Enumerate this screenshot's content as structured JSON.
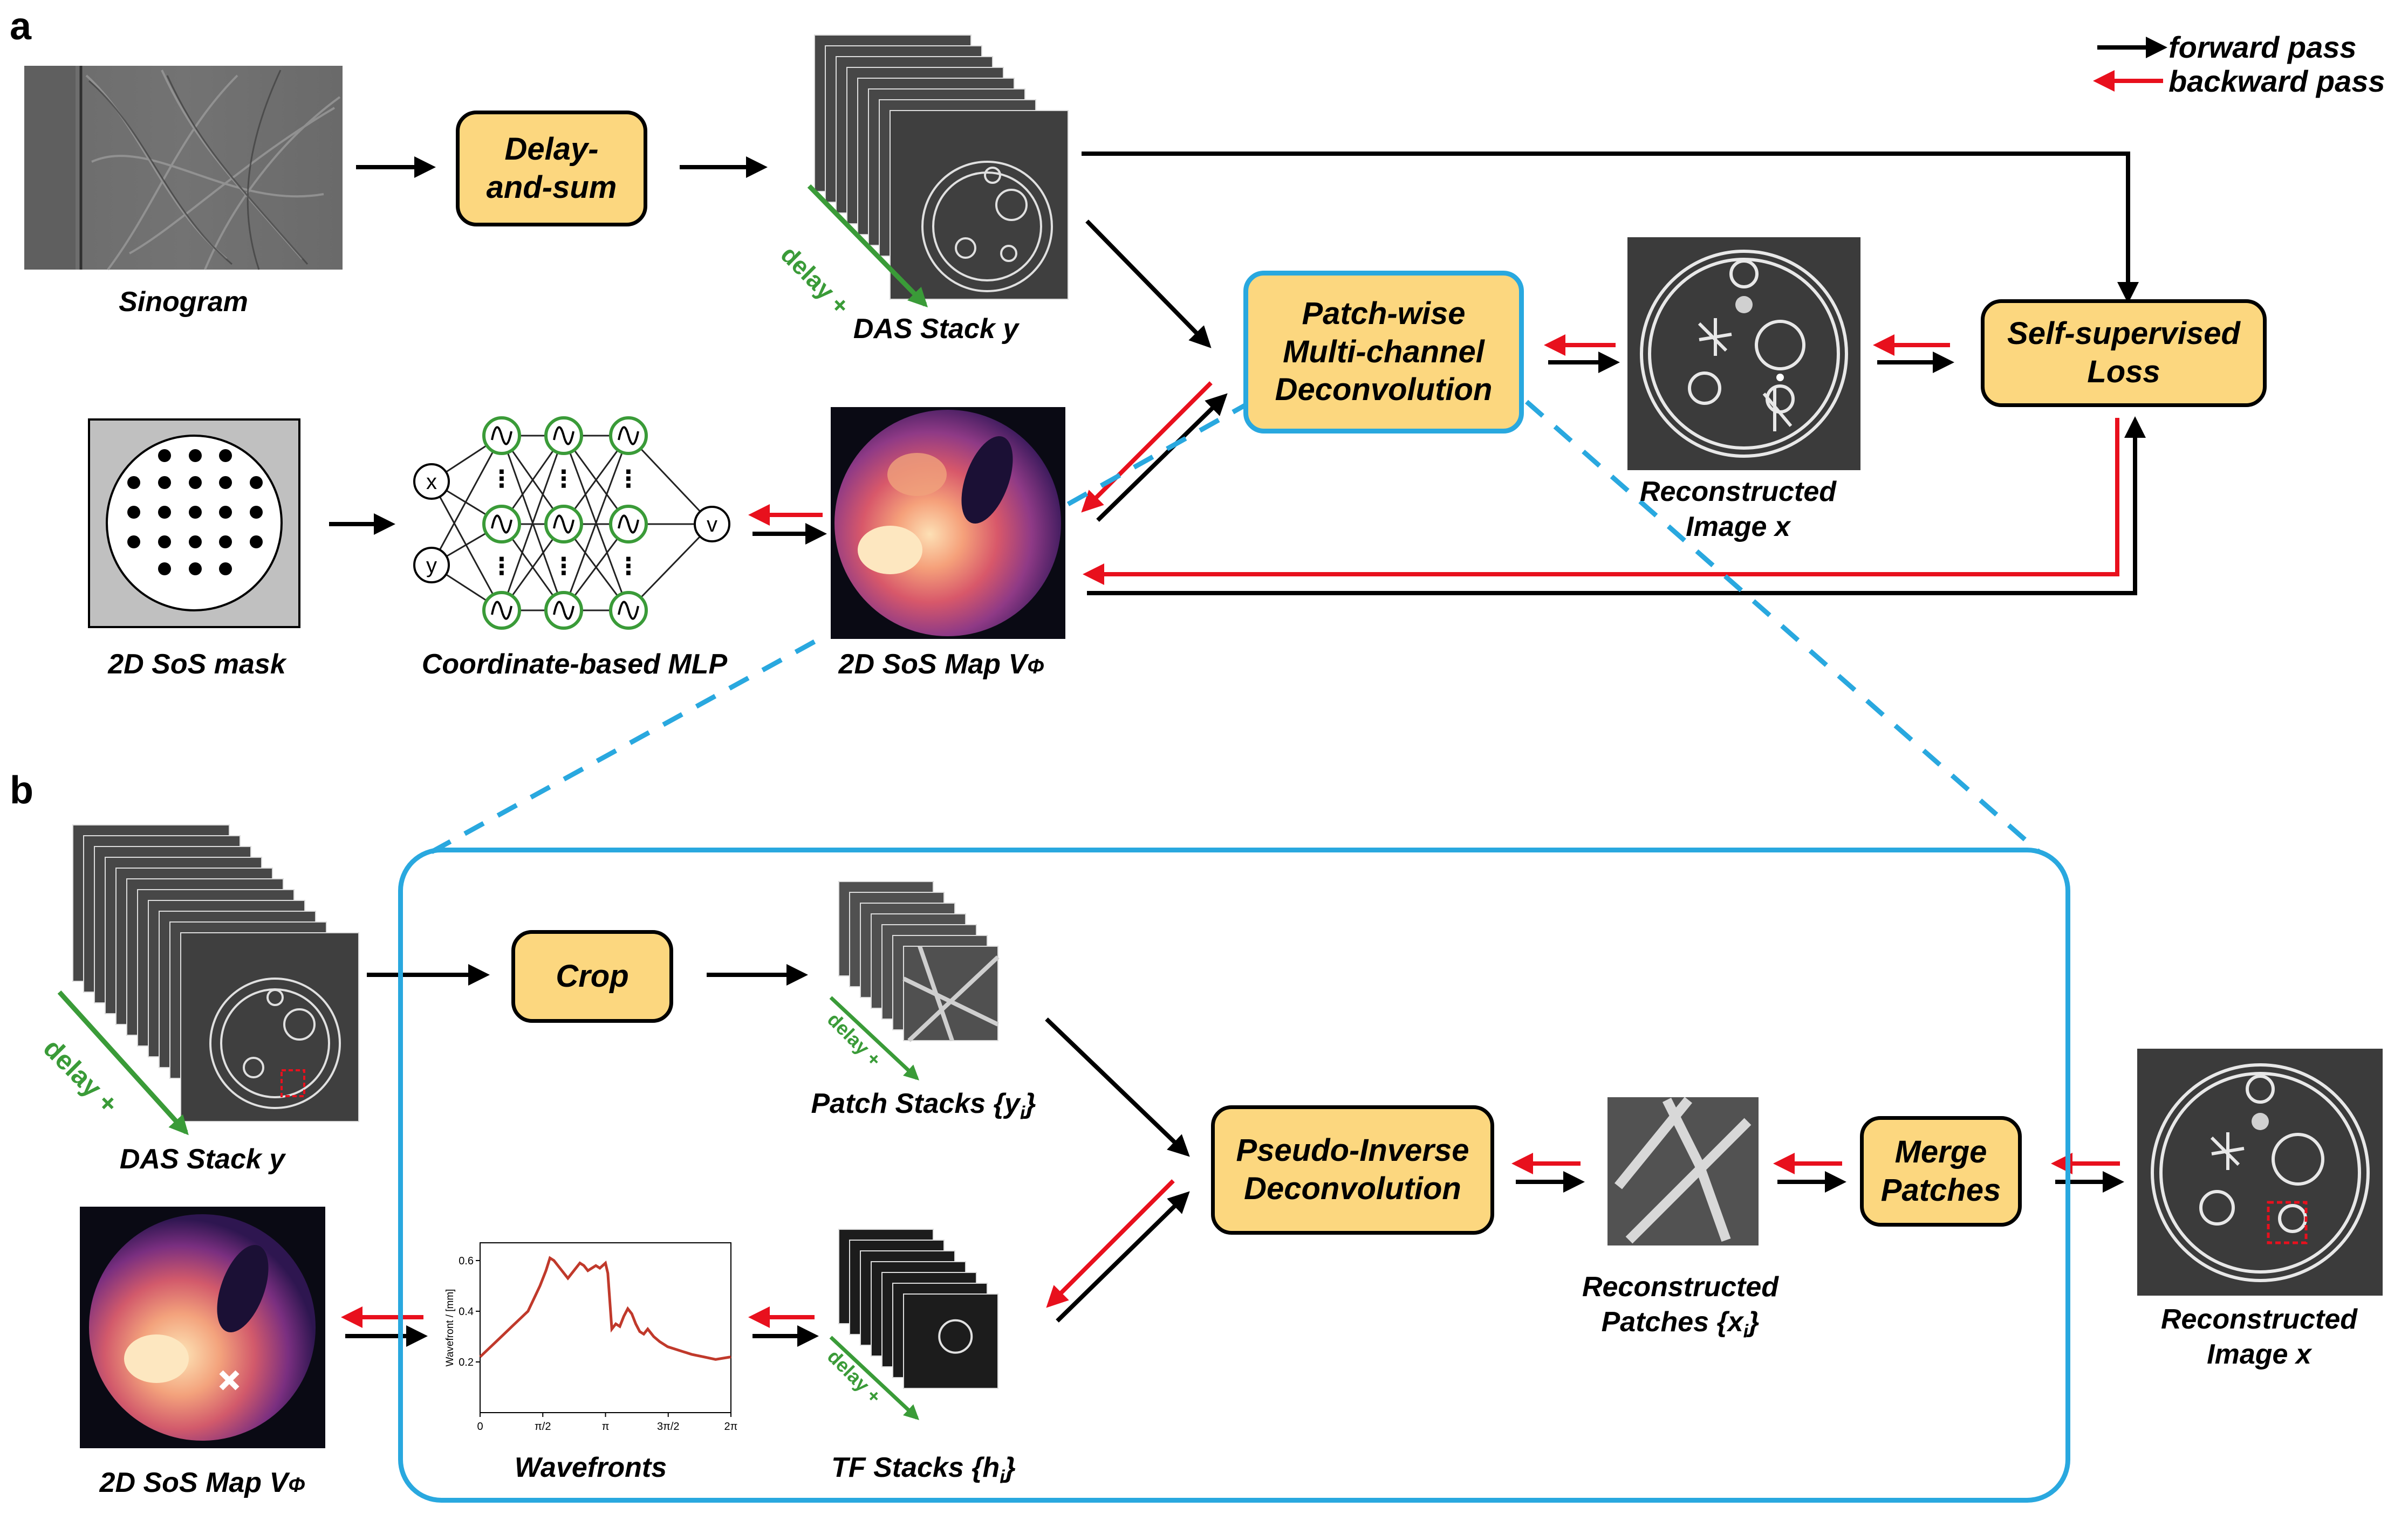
{
  "panels": {
    "a": "a",
    "b": "b"
  },
  "legend": {
    "forward": "forward pass",
    "backward": "backward pass"
  },
  "panel_a": {
    "sinogram": "Sinogram",
    "delay_and_sum": "Delay-\nand-sum",
    "das_stack": "DAS Stack y",
    "delay_tag": "delay +",
    "patchwise": "Patch-wise\nMulti-channel\nDeconvolution",
    "reconstructed": "Reconstructed\nImage x",
    "loss": "Self-supervised\nLoss",
    "sos_mask": "2D SoS mask",
    "mlp": "Coordinate-based MLP",
    "sos_map": "2D SoS Map V",
    "phi": "Φ",
    "mlp_input_x": "x",
    "mlp_input_y": "y",
    "mlp_output": "v",
    "ellipsis": "⋮"
  },
  "panel_b": {
    "das_stack": "DAS Stack y",
    "delay_tag": "delay +",
    "sos_map": "2D SoS Map V",
    "phi": "Φ",
    "crop": "Crop",
    "patch_stacks": "Patch Stacks {y",
    "patch_stacks_sub": "i",
    "patch_stacks_end": "}",
    "tf_stacks": "TF Stacks {h",
    "tf_stacks_sub": "i",
    "tf_stacks_end": "}",
    "wavefronts": "Wavefronts",
    "pseudo_inverse": "Pseudo-Inverse\nDeconvolution",
    "recon_patches": "Reconstructed\nPatches {x",
    "recon_patches_sub": "i",
    "recon_patches_end": "}",
    "merge": "Merge\nPatches",
    "reconstructed": "Reconstructed\nImage x"
  },
  "chart_data": {
    "type": "line",
    "ylabel": "Wavefront / [mm]",
    "xlabel": "",
    "xticks": [
      "0",
      "π/2",
      "π",
      "3π/2",
      "2π"
    ],
    "yticks": [
      "0.2",
      "0.4",
      "0.6"
    ],
    "xlim": [
      0,
      6.2832
    ],
    "ylim": [
      0.0,
      0.67
    ],
    "series": [
      {
        "color": "#c0392b",
        "x": [
          0,
          0.2,
          0.4,
          0.6,
          0.8,
          1.0,
          1.2,
          1.35,
          1.5,
          1.65,
          1.75,
          1.85,
          2.0,
          2.1,
          2.2,
          2.35,
          2.5,
          2.6,
          2.7,
          2.8,
          2.9,
          3.0,
          3.14,
          3.2,
          3.3,
          3.4,
          3.5,
          3.6,
          3.7,
          3.8,
          3.9,
          4.0,
          4.1,
          4.2,
          4.35,
          4.5,
          4.7,
          4.9,
          5.1,
          5.3,
          5.6,
          5.9,
          6.2832
        ],
        "y": [
          0.22,
          0.25,
          0.28,
          0.31,
          0.34,
          0.37,
          0.4,
          0.45,
          0.5,
          0.56,
          0.61,
          0.6,
          0.57,
          0.55,
          0.53,
          0.56,
          0.59,
          0.58,
          0.56,
          0.57,
          0.58,
          0.57,
          0.59,
          0.55,
          0.33,
          0.35,
          0.34,
          0.38,
          0.41,
          0.39,
          0.35,
          0.32,
          0.31,
          0.33,
          0.3,
          0.28,
          0.26,
          0.25,
          0.24,
          0.23,
          0.22,
          0.21,
          0.22
        ]
      }
    ]
  },
  "colors": {
    "accent_box": "#fcd77f",
    "blue": "#29a8df",
    "green": "#3a9b38",
    "red": "#e8101d"
  }
}
